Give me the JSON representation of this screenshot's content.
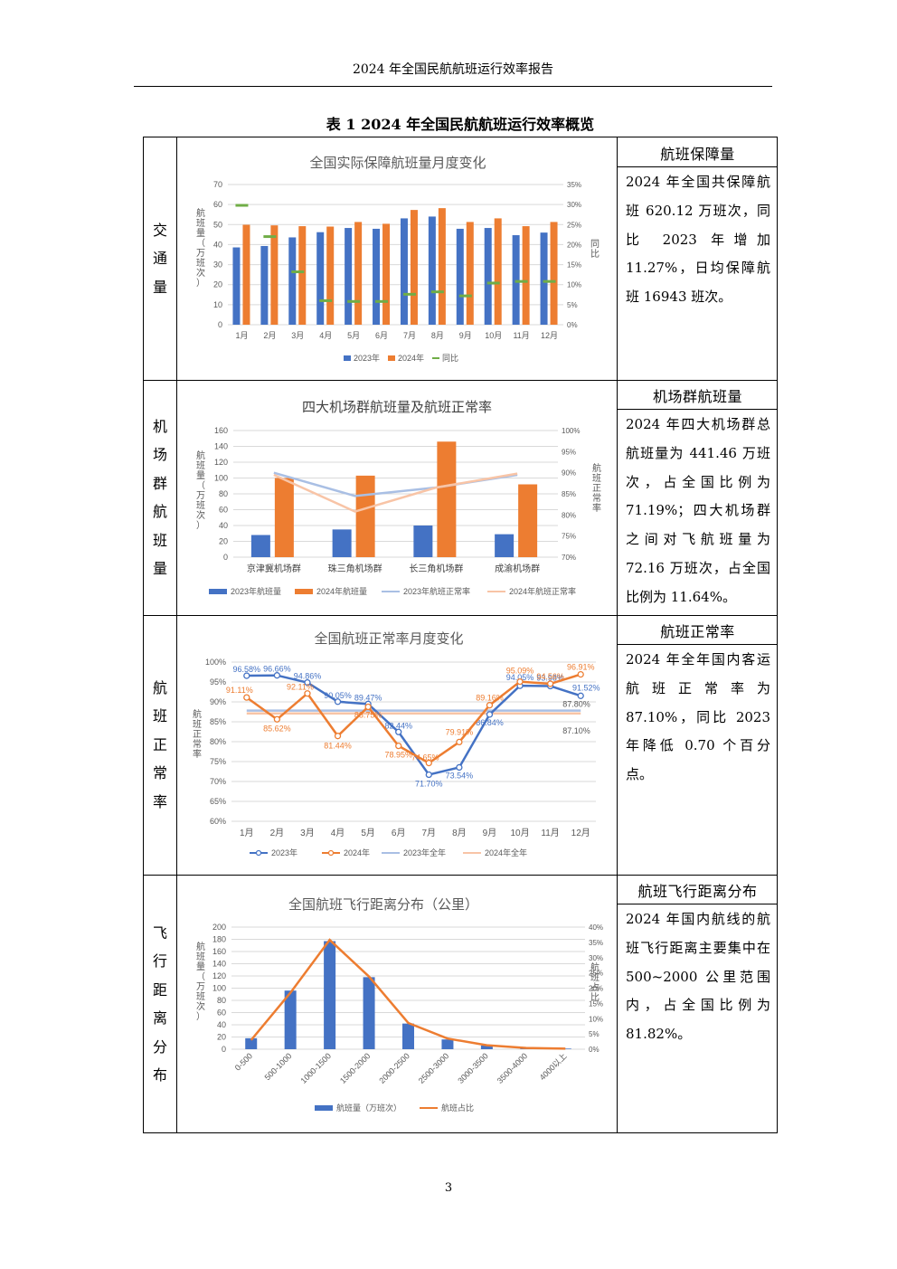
{
  "page": {
    "header": "2024 年全国民航航班运行效率报告",
    "table_title": "表 1 2024 年全国民航航班运行效率概览",
    "page_number": "3"
  },
  "rows": [
    {
      "label": "交通量",
      "heading": "航班保障量",
      "text": "2024 年全国共保障航班 620.12 万班次，同比 2023 年增加 11.27%，日均保障航班 16943 班次。"
    },
    {
      "label": "机场群航班量",
      "heading": "机场群航班量",
      "text": "2024 年四大机场群总航班量为 441.46 万班次，占全国比例为 71.19%；四大机场群之间对飞航班量为 72.16 万班次，占全国比例为 11.64%。"
    },
    {
      "label": "航班正常率",
      "heading": "航班正常率",
      "text": "2024 年全年国内客运航班正常率为 87.10%，同比 2023 年降低 0.70 个百分点。"
    },
    {
      "label": "飞行距离分布",
      "heading": "航班飞行距离分布",
      "text": "2024 年国内航线的航班飞行距离主要集中在 500~2000 公里范围内，占全国比例为 81.82%。"
    }
  ],
  "chart_data": [
    {
      "type": "bar",
      "title": "全国实际保障航班量月度变化",
      "ylabel": "航班量（万班次）",
      "y2label": "同比",
      "ylim": [
        0,
        70
      ],
      "y2lim": [
        0,
        35
      ],
      "categories": [
        "1月",
        "2月",
        "3月",
        "4月",
        "5月",
        "6月",
        "7月",
        "8月",
        "9月",
        "10月",
        "11月",
        "12月"
      ],
      "series": [
        {
          "name": "2023年",
          "kind": "bar",
          "color": "#4472C4",
          "values": [
            38.6,
            39.3,
            43.6,
            46.2,
            48.3,
            47.9,
            53.1,
            54.0,
            47.9,
            48.3,
            44.7,
            46.0
          ]
        },
        {
          "name": "2024年",
          "kind": "bar",
          "color": "#ED7D31",
          "values": [
            49.9,
            49.6,
            49.2,
            49.0,
            51.3,
            50.4,
            57.3,
            58.2,
            51.3,
            53.1,
            49.2,
            51.3
          ]
        },
        {
          "name": "同比",
          "kind": "marker",
          "axis": "y2",
          "color": "#70AD47",
          "values": [
            29.8,
            22.0,
            13.2,
            6.0,
            5.8,
            5.8,
            7.6,
            8.2,
            7.2,
            10.4,
            10.8,
            10.8
          ]
        }
      ],
      "y_ticks": [
        "0",
        "10",
        "20",
        "30",
        "40",
        "50",
        "60",
        "70"
      ],
      "y2_ticks": [
        "0%",
        "5%",
        "10%",
        "15%",
        "20%",
        "25%",
        "30%",
        "35%"
      ],
      "legend": "bottom",
      "legend_labels": [
        "2023年",
        "2024年",
        "同比"
      ]
    },
    {
      "type": "bar",
      "title": "四大机场群航班量及航班正常率",
      "ylabel": "航班量（万班次）",
      "y2label": "航班正常率",
      "ylim": [
        0,
        160
      ],
      "y2lim": [
        70,
        100
      ],
      "categories": [
        "京津冀机场群",
        "珠三角机场群",
        "长三角机场群",
        "成渝机场群"
      ],
      "series": [
        {
          "name": "2023年航班量",
          "kind": "bar",
          "color": "#4472C4",
          "values": [
            28,
            35,
            40,
            29
          ]
        },
        {
          "name": "2024年航班量",
          "kind": "bar",
          "color": "#ED7D31",
          "values": [
            100,
            103,
            146,
            92
          ]
        },
        {
          "name": "2023年航班正常率",
          "kind": "line",
          "axis": "y2",
          "color": "#A9BFE4",
          "values": [
            90.0,
            84.5,
            86.5,
            89.5
          ]
        },
        {
          "name": "2024年航班正常率",
          "kind": "line",
          "axis": "y2",
          "color": "#F8C4A6",
          "values": [
            89.5,
            80.8,
            86.5,
            89.8
          ]
        }
      ],
      "y_ticks": [
        "0",
        "20",
        "40",
        "60",
        "80",
        "100",
        "120",
        "140",
        "160"
      ],
      "y2_ticks": [
        "70%",
        "75%",
        "80%",
        "85%",
        "90%",
        "95%",
        "100%"
      ],
      "legend": "bottom",
      "legend_labels": [
        "2023年航班量",
        "2024年航班量",
        "2023年航班正常率",
        "2024年航班正常率"
      ]
    },
    {
      "type": "line",
      "title": "全国航班正常率月度变化",
      "ylabel": "航班正常率",
      "ylim": [
        60,
        100
      ],
      "categories": [
        "1月",
        "2月",
        "3月",
        "4月",
        "5月",
        "6月",
        "7月",
        "8月",
        "9月",
        "10月",
        "11月",
        "12月"
      ],
      "series": [
        {
          "name": "2023年",
          "color": "#4472C4",
          "values": [
            96.58,
            96.66,
            94.86,
            90.05,
            89.47,
            82.44,
            71.7,
            73.54,
            86.84,
            94.05,
            93.98,
            91.52
          ],
          "labels": [
            "96.58%",
            "96.66%",
            "94.86%",
            "90.05%",
            "89.47%",
            "82.44%",
            "71.70%",
            "73.54%",
            "86.84%",
            "94.05%",
            "93.98%",
            "91.52%"
          ]
        },
        {
          "name": "2024年",
          "color": "#ED7D31",
          "values": [
            91.11,
            85.62,
            92.11,
            81.44,
            88.75,
            78.95,
            74.65,
            79.91,
            89.16,
            95.09,
            94.56,
            96.91
          ],
          "labels": [
            "91.11%",
            "85.62%",
            "92.11%",
            "81.44%",
            "88.75%",
            "78.95%",
            "74.65%",
            "79.91%",
            "89.16%",
            "95.09%",
            "94.56%",
            "96.91%"
          ]
        },
        {
          "name": "2023年全年",
          "color": "#A9BFE4",
          "value": 87.8,
          "label": "87.80%"
        },
        {
          "name": "2024年全年",
          "color": "#F8C4A6",
          "value": 87.1,
          "label": "87.10%"
        }
      ],
      "y_ticks": [
        "60%",
        "65%",
        "70%",
        "75%",
        "80%",
        "85%",
        "90%",
        "95%",
        "100%"
      ],
      "legend": "bottom",
      "legend_labels": [
        "2023年",
        "2024年",
        "2023年全年",
        "2024年全年"
      ]
    },
    {
      "type": "bar",
      "title": "全国航班飞行距离分布（公里）",
      "ylabel": "航班量（万班次）",
      "y2label": "航班占比",
      "ylim": [
        0,
        200
      ],
      "y2lim": [
        0,
        40
      ],
      "categories": [
        "0-500",
        "500-1000",
        "1000-1500",
        "1500-2000",
        "2000-2500",
        "2500-3000",
        "3000-3500",
        "3500-4000",
        "4000以上"
      ],
      "series": [
        {
          "name": "航班量（万班次）",
          "kind": "bar",
          "color": "#4472C4",
          "values": [
            18,
            96,
            177,
            118,
            42,
            16,
            6,
            2,
            1
          ]
        },
        {
          "name": "航班占比",
          "kind": "line",
          "axis": "y2",
          "color": "#ED7D31",
          "values": [
            3.0,
            18.5,
            35.8,
            23.8,
            8.6,
            3.5,
            1.3,
            0.4,
            0.2
          ]
        }
      ],
      "y_ticks": [
        "0",
        "20",
        "40",
        "60",
        "80",
        "100",
        "120",
        "140",
        "160",
        "180",
        "200"
      ],
      "y2_ticks": [
        "0%",
        "5%",
        "10%",
        "15%",
        "20%",
        "25%",
        "30%",
        "35%",
        "40%"
      ],
      "legend": "bottom",
      "legend_labels": [
        "航班量（万班次）",
        "航班占比"
      ]
    }
  ]
}
